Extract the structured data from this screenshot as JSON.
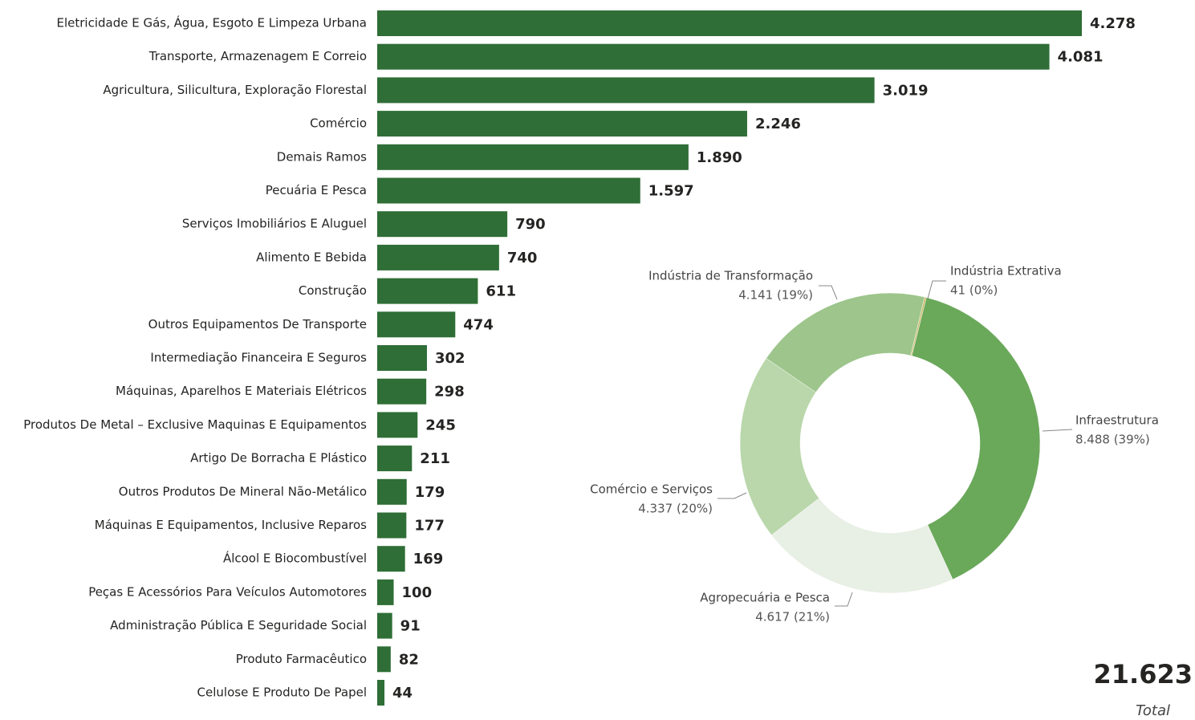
{
  "chart_data": [
    {
      "type": "bar",
      "orientation": "horizontal",
      "color": "#2f6e36",
      "categories": [
        "Eletricidade E Gás, Água, Esgoto E Limpeza Urbana",
        "Transporte, Armazenagem E Correio",
        "Agricultura, Silicultura, Exploração Florestal",
        "Comércio",
        "Demais Ramos",
        "Pecuária E Pesca",
        "Serviços Imobiliários E Aluguel",
        "Alimento E Bebida",
        "Construção",
        "Outros Equipamentos De Transporte",
        "Intermediação Financeira E Seguros",
        "Máquinas, Aparelhos E Materiais Elétricos",
        "Produtos De Metal – Exclusive Maquinas E Equipamentos",
        "Artigo De Borracha E Plástico",
        "Outros Produtos De Mineral Não-Metálico",
        "Máquinas E Equipamentos, Inclusive Reparos",
        "Álcool E Biocombustível",
        "Peças E Acessórios Para Veículos Automotores",
        "Administração Pública E Seguridade Social",
        "Produto Farmacêutico",
        "Celulose E Produto De Papel"
      ],
      "values": [
        4278,
        4081,
        3019,
        2246,
        1890,
        1597,
        790,
        740,
        611,
        474,
        302,
        298,
        245,
        211,
        179,
        177,
        169,
        100,
        91,
        82,
        44
      ],
      "value_labels": [
        "4.278",
        "4.081",
        "3.019",
        "2.246",
        "1.890",
        "1.597",
        "790",
        "740",
        "611",
        "474",
        "302",
        "298",
        "245",
        "211",
        "179",
        "177",
        "169",
        "100",
        "91",
        "82",
        "44"
      ]
    },
    {
      "type": "donut",
      "categories": [
        "Infraestrutura",
        "Agropecuária e Pesca",
        "Comércio e Serviços",
        "Indústria de Transformação",
        "Indústria Extrativa"
      ],
      "values": [
        8488,
        4617,
        4337,
        4141,
        41
      ],
      "value_labels": [
        "8.488 (39%)",
        "4.617 (21%)",
        "4.337 (20%)",
        "4.141 (19%)",
        "41 (0%)"
      ],
      "colors": [
        "#6aa85a",
        "#e8efe4",
        "#b9d7aa",
        "#9dc58c",
        "#c9b862"
      ]
    }
  ],
  "card": {
    "value": "21.623",
    "label": "Total"
  }
}
